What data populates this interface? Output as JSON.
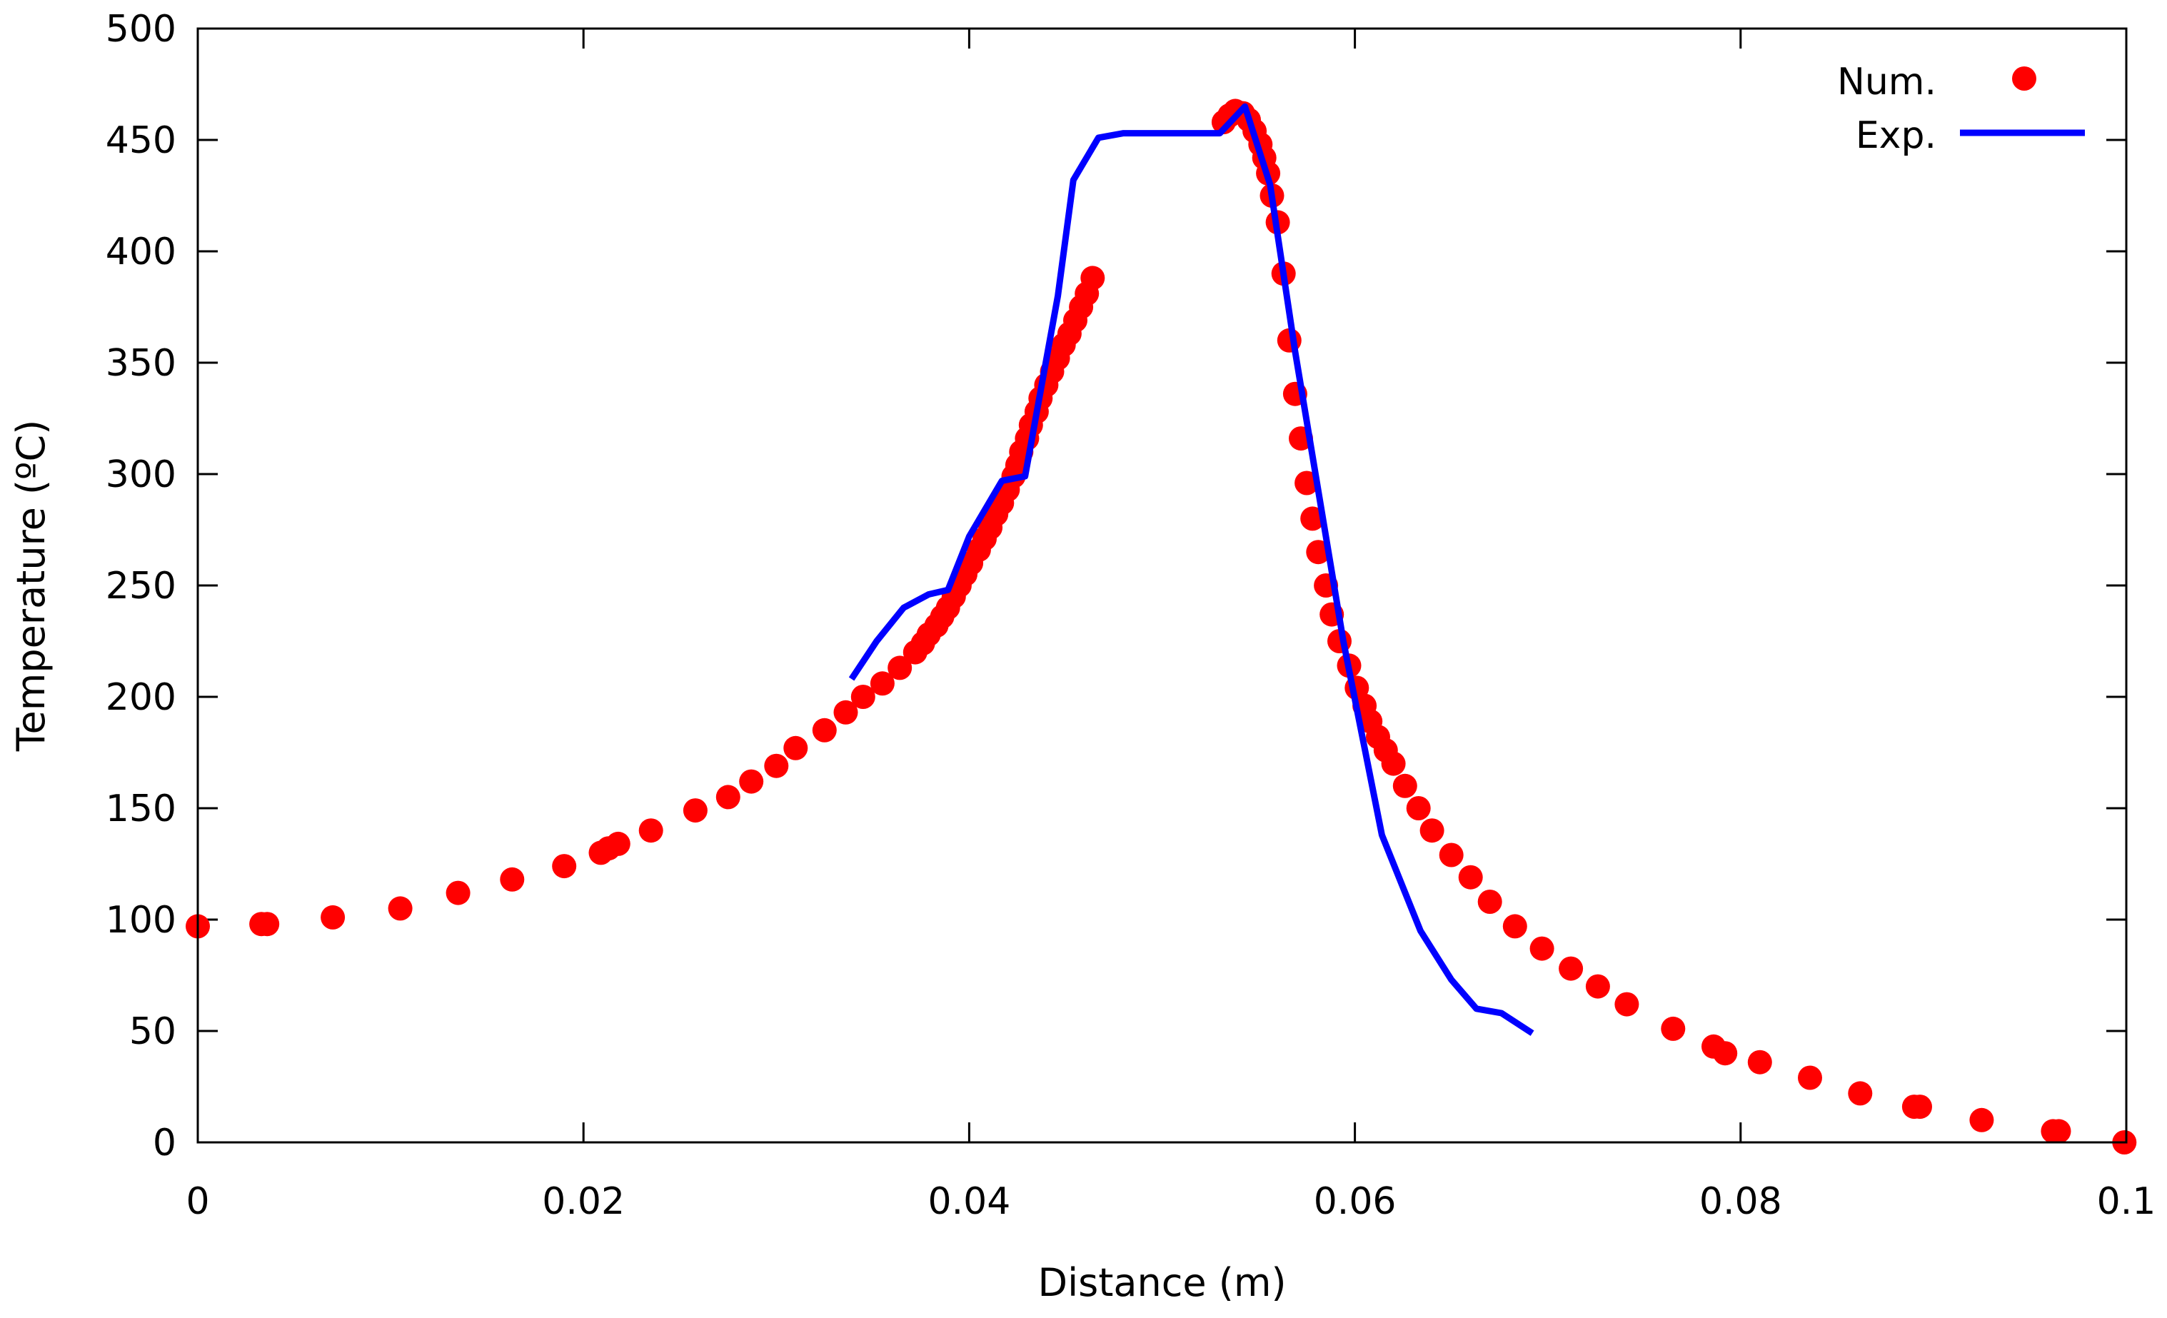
{
  "chart_data": {
    "type": "scatter",
    "title": "",
    "xlabel": "Distance (m)",
    "ylabel": "Temperature (ºC)",
    "xlim": [
      0,
      0.1
    ],
    "ylim": [
      0,
      500
    ],
    "xticks": [
      0,
      0.02,
      0.04,
      0.06,
      0.08,
      0.1
    ],
    "xtick_labels": [
      "0",
      "0.02",
      "0.04",
      "0.06",
      "0.08",
      "0.1"
    ],
    "yticks": [
      0,
      50,
      100,
      150,
      200,
      250,
      300,
      350,
      400,
      450,
      500
    ],
    "ytick_labels": [
      "0",
      "50",
      "100",
      "150",
      "200",
      "250",
      "300",
      "350",
      "400",
      "450",
      "500"
    ],
    "grid": false,
    "legend_position": "top-right",
    "series": [
      {
        "name": "Num.",
        "style": "points",
        "color": "#ff0000",
        "points": [
          [
            0.0,
            97
          ],
          [
            0.0033,
            98
          ],
          [
            0.0036,
            98
          ],
          [
            0.007,
            101
          ],
          [
            0.0105,
            105
          ],
          [
            0.0135,
            112
          ],
          [
            0.0163,
            118
          ],
          [
            0.019,
            124
          ],
          [
            0.0209,
            130
          ],
          [
            0.0213,
            132
          ],
          [
            0.0218,
            134
          ],
          [
            0.0235,
            140
          ],
          [
            0.0258,
            149
          ],
          [
            0.0275,
            155
          ],
          [
            0.0287,
            162
          ],
          [
            0.03,
            169
          ],
          [
            0.031,
            177
          ],
          [
            0.0325,
            185
          ],
          [
            0.0336,
            193
          ],
          [
            0.0345,
            200
          ],
          [
            0.0355,
            206
          ],
          [
            0.0364,
            213
          ],
          [
            0.0372,
            220
          ],
          [
            0.0376,
            224
          ],
          [
            0.0379,
            228
          ],
          [
            0.0383,
            232
          ],
          [
            0.0386,
            236
          ],
          [
            0.0389,
            240
          ],
          [
            0.0392,
            245
          ],
          [
            0.0395,
            250
          ],
          [
            0.0398,
            255
          ],
          [
            0.0401,
            260
          ],
          [
            0.0405,
            266
          ],
          [
            0.0408,
            271
          ],
          [
            0.0411,
            276
          ],
          [
            0.0414,
            282
          ],
          [
            0.0417,
            287
          ],
          [
            0.042,
            293
          ],
          [
            0.0423,
            299
          ],
          [
            0.0425,
            304
          ],
          [
            0.0427,
            310
          ],
          [
            0.043,
            316
          ],
          [
            0.0432,
            322
          ],
          [
            0.0435,
            328
          ],
          [
            0.0437,
            334
          ],
          [
            0.044,
            340
          ],
          [
            0.0443,
            346
          ],
          [
            0.0446,
            352
          ],
          [
            0.0449,
            358
          ],
          [
            0.0452,
            363
          ],
          [
            0.0455,
            369
          ],
          [
            0.0458,
            375
          ],
          [
            0.0461,
            381
          ],
          [
            0.0464,
            388
          ],
          [
            0.0532,
            458
          ],
          [
            0.0535,
            461
          ],
          [
            0.0538,
            463
          ],
          [
            0.0542,
            462
          ],
          [
            0.0545,
            459
          ],
          [
            0.0548,
            454
          ],
          [
            0.0551,
            448
          ],
          [
            0.0553,
            442
          ],
          [
            0.0555,
            435
          ],
          [
            0.0557,
            425
          ],
          [
            0.056,
            413
          ],
          [
            0.0563,
            390
          ],
          [
            0.0566,
            360
          ],
          [
            0.0569,
            336
          ],
          [
            0.0572,
            316
          ],
          [
            0.0575,
            296
          ],
          [
            0.0578,
            280
          ],
          [
            0.0581,
            265
          ],
          [
            0.0585,
            250
          ],
          [
            0.0588,
            237
          ],
          [
            0.0592,
            225
          ],
          [
            0.0597,
            214
          ],
          [
            0.0601,
            204
          ],
          [
            0.0605,
            196
          ],
          [
            0.0608,
            189
          ],
          [
            0.0612,
            182
          ],
          [
            0.0616,
            176
          ],
          [
            0.062,
            170
          ],
          [
            0.0626,
            160
          ],
          [
            0.0633,
            150
          ],
          [
            0.064,
            140
          ],
          [
            0.065,
            129
          ],
          [
            0.066,
            119
          ],
          [
            0.067,
            108
          ],
          [
            0.0683,
            97
          ],
          [
            0.0697,
            87
          ],
          [
            0.0712,
            78
          ],
          [
            0.0726,
            70
          ],
          [
            0.0741,
            62
          ],
          [
            0.0765,
            51
          ],
          [
            0.0786,
            43
          ],
          [
            0.0792,
            40
          ],
          [
            0.081,
            36
          ],
          [
            0.0836,
            29
          ],
          [
            0.0862,
            22
          ],
          [
            0.089,
            16
          ],
          [
            0.0893,
            16
          ],
          [
            0.0925,
            10
          ],
          [
            0.0962,
            5
          ],
          [
            0.0965,
            5
          ],
          [
            0.0999,
            0
          ]
        ]
      },
      {
        "name": "Exp.",
        "style": "line",
        "color": "#0000ff",
        "points": [
          [
            0.0339,
            208
          ],
          [
            0.0352,
            225
          ],
          [
            0.0366,
            240
          ],
          [
            0.0379,
            246
          ],
          [
            0.0389,
            248
          ],
          [
            0.04,
            272
          ],
          [
            0.0417,
            297
          ],
          [
            0.0429,
            299
          ],
          [
            0.0446,
            380
          ],
          [
            0.0454,
            432
          ],
          [
            0.0467,
            451
          ],
          [
            0.048,
            453
          ],
          [
            0.053,
            453
          ],
          [
            0.0543,
            465
          ],
          [
            0.0556,
            430
          ],
          [
            0.0569,
            355
          ],
          [
            0.0594,
            225
          ],
          [
            0.0614,
            138
          ],
          [
            0.0634,
            95
          ],
          [
            0.065,
            73
          ],
          [
            0.0663,
            60
          ],
          [
            0.0676,
            58
          ],
          [
            0.0692,
            49
          ]
        ]
      }
    ]
  }
}
